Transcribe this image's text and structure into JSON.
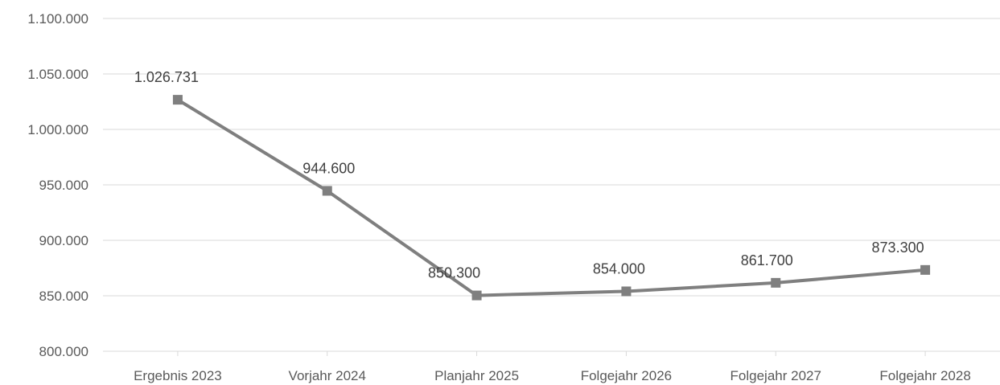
{
  "chart_data": {
    "type": "line",
    "categories": [
      "Ergebnis 2023",
      "Vorjahr 2024",
      "Planjahr 2025",
      "Folgejahr 2026",
      "Folgejahr 2027",
      "Folgejahr 2028"
    ],
    "values": [
      1026731,
      944600,
      850300,
      854000,
      861700,
      873300
    ],
    "data_labels": [
      "1.026.731",
      "944.600",
      "850.300",
      "854.000",
      "861.700",
      "873.300"
    ],
    "ylim": [
      800000,
      1100000
    ],
    "y_ticks": [
      800000,
      850000,
      900000,
      950000,
      1000000,
      1050000,
      1100000
    ],
    "y_tick_labels": [
      "800.000",
      "850.000",
      "900.000",
      "950.000",
      "1.000.000",
      "1.050.000",
      "1.100.000"
    ],
    "grid": true,
    "legend": "none",
    "series_color": "#7f7f7f",
    "grid_color": "#d9d9d9",
    "marker": "square"
  }
}
